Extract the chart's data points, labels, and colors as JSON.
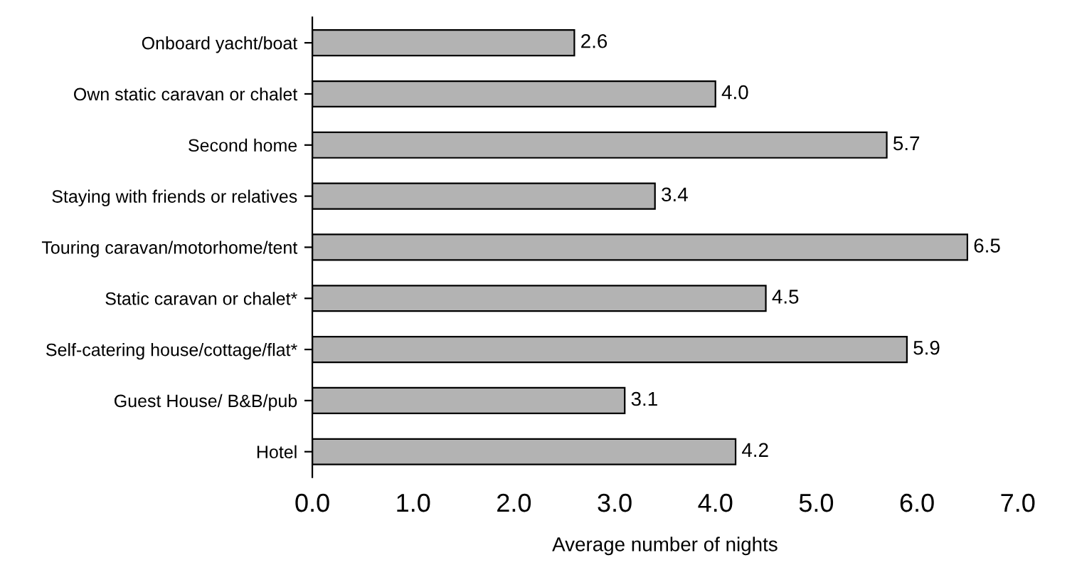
{
  "chart_data": {
    "type": "bar",
    "orientation": "horizontal",
    "xlabel": "Average number of nights",
    "categories": [
      "Onboard yacht/boat",
      "Own static caravan or chalet",
      "Second home",
      "Staying with friends or relatives",
      "Touring caravan/motorhome/tent",
      "Static caravan or chalet*",
      "Self-catering house/cottage/flat*",
      "Guest House/ B&B/pub",
      "Hotel"
    ],
    "values": [
      2.6,
      4.0,
      5.7,
      3.4,
      6.5,
      4.5,
      5.9,
      3.1,
      4.2
    ],
    "value_labels": [
      "2.6",
      "4.0",
      "5.7",
      "3.4",
      "6.5",
      "4.5",
      "5.9",
      "3.1",
      "4.2"
    ],
    "color": "#b3b3b3",
    "xlim": [
      0,
      7
    ],
    "xticks": [
      {
        "value": 0,
        "label": "0.0"
      },
      {
        "value": 1,
        "label": "1.0"
      },
      {
        "value": 2,
        "label": "2.0"
      },
      {
        "value": 3,
        "label": "3.0"
      },
      {
        "value": 4,
        "label": "4.0"
      },
      {
        "value": 5,
        "label": "5.0"
      },
      {
        "value": 6,
        "label": "6.0"
      },
      {
        "value": 7,
        "label": "7.0"
      }
    ],
    "grid": false
  }
}
